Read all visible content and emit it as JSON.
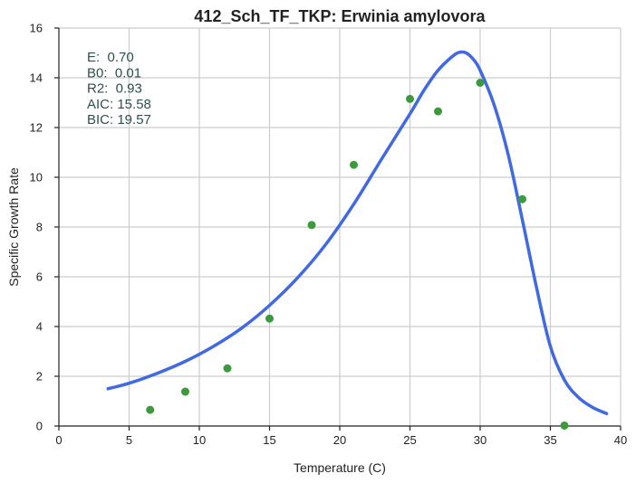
{
  "chart_data": {
    "type": "scatter",
    "title": "412_Sch_TF_TKP: Erwinia amylovora",
    "xlabel": "Temperature (C)",
    "ylabel": "Specific Growth Rate",
    "xlim": [
      0,
      40
    ],
    "ylim": [
      0,
      16
    ],
    "xticks": [
      0,
      5,
      10,
      15,
      20,
      25,
      30,
      35,
      40
    ],
    "yticks": [
      0,
      2,
      4,
      6,
      8,
      10,
      12,
      14,
      16
    ],
    "grid": true,
    "annotations": [
      "E:  0.70",
      "B0:  0.01",
      "R2:  0.93",
      "AIC: 15.58",
      "BIC: 19.57"
    ],
    "series": [
      {
        "kind": "points",
        "color": "#3c9a3c",
        "x": [
          6.5,
          9.0,
          12.0,
          15.0,
          18.0,
          21.0,
          25.0,
          27.0,
          30.0,
          33.0,
          36.0
        ],
        "y": [
          0.65,
          1.38,
          2.32,
          4.32,
          8.08,
          10.5,
          13.15,
          12.65,
          13.8,
          9.12,
          0.02
        ]
      },
      {
        "kind": "fit-curve",
        "color": "#4169e1",
        "x": [
          3.5,
          5,
          7,
          9,
          11,
          13,
          15,
          17,
          19,
          21,
          23,
          25,
          26,
          27,
          28,
          28.5,
          29,
          29.5,
          30,
          31,
          32,
          33,
          34,
          35,
          36,
          37,
          38,
          39
        ],
        "y": [
          1.5,
          1.72,
          2.12,
          2.6,
          3.2,
          3.93,
          4.85,
          5.96,
          7.3,
          8.92,
          10.75,
          12.55,
          13.5,
          14.3,
          14.85,
          15.02,
          15.0,
          14.75,
          14.3,
          12.9,
          10.9,
          8.3,
          5.6,
          3.2,
          1.85,
          1.15,
          0.75,
          0.5
        ]
      }
    ]
  }
}
